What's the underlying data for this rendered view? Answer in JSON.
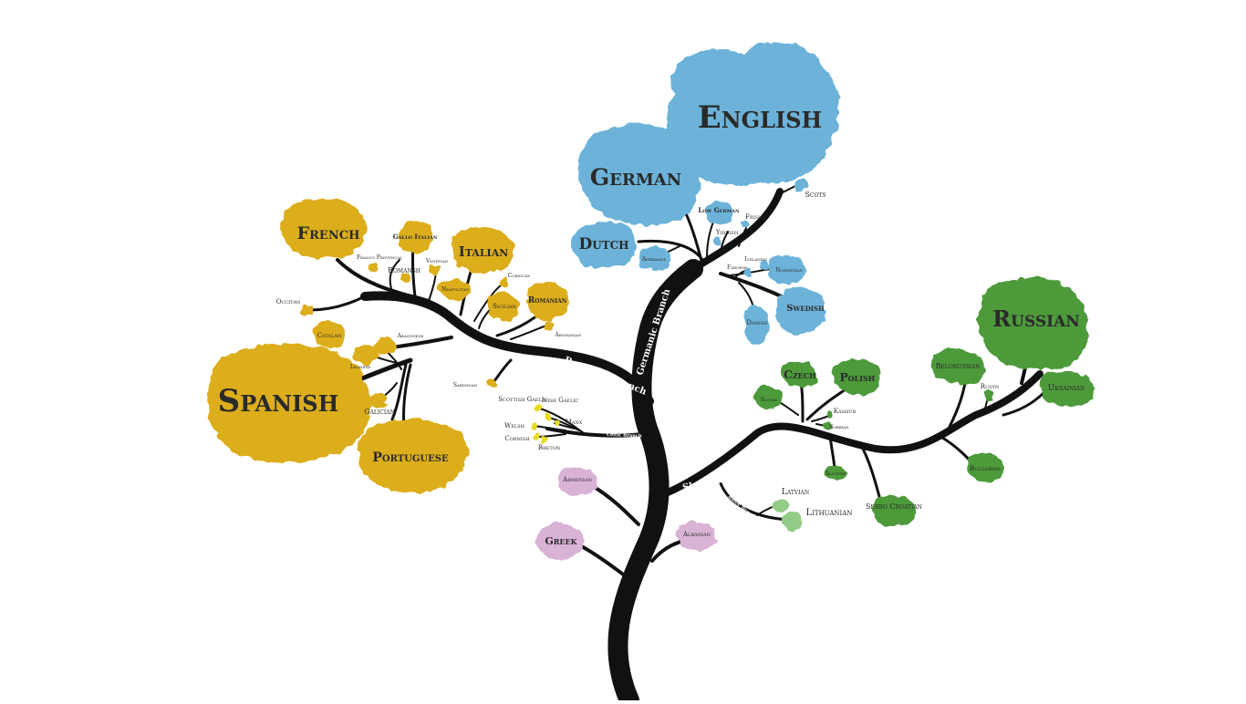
{
  "colors": {
    "trunk": "#111111",
    "germanic": "#6db3d9",
    "romance": "#dcae1d",
    "celtic": "#e8dc22",
    "slavic": "#4e9a3b",
    "baltic": "#93cc86",
    "other": "#d9b3d6",
    "label": "#2a2a2a"
  },
  "branches": {
    "germanic": "Germanic Branch",
    "romance": "Romance Branch",
    "celtic": "Celtic Branch",
    "slavic": "Slavic Branch",
    "baltic": "Baltic Branch"
  },
  "languages": {
    "english": "English",
    "german": "German",
    "dutch": "Dutch",
    "afrikaans": "Afrikaans",
    "scots": "Scots",
    "low_german": "Low German",
    "frisian": "Frisian",
    "yiddish": "Yiddish",
    "icelandic": "Icelandic",
    "faroese": "Faroese",
    "norwegian": "Norwegian",
    "swedish": "Swedish",
    "danish": "Danish",
    "french": "French",
    "gallo_italian": "Gallo Italian",
    "italian": "Italian",
    "franco_provencal": "Franco Provencal",
    "romansh": "Romansh",
    "venetian": "Venetian",
    "corsican": "Corsican",
    "neapolitan": "Neapolitan",
    "sicilian": "Sicilian",
    "romanian": "Romanian",
    "aromanian": "Aromanian",
    "occitan": "Occitan",
    "catalan": "Catalan",
    "aragonese": "Aragonese",
    "leonese": "Leonese",
    "spanish": "Spanish",
    "galician": "Galician",
    "portuguese": "Portuguese",
    "sardinian": "Sardinian",
    "scottish_gaelic": "Scottish Gaelic",
    "irish_gaelic": "Irish Gaelic",
    "manx": "Manx",
    "welsh": "Welsh",
    "cornish": "Cornish",
    "breton": "Breton",
    "armenian": "Armenian",
    "greek": "Greek",
    "albanian": "Albanian",
    "russian": "Russian",
    "belorussian": "Belorussian",
    "rusyn": "Rusyn",
    "ukrainian": "Ukrainian",
    "czech": "Czech",
    "polish": "Polish",
    "slovak": "Slovak",
    "kashub": "Kashub",
    "sorbian": "Sorbian",
    "slovene": "Slovene",
    "bulgarian": "Bulgarian",
    "serbo_croatian": "Serbo Croatian",
    "latvian": "Latvian",
    "lithuanian": "Lithuanian"
  }
}
